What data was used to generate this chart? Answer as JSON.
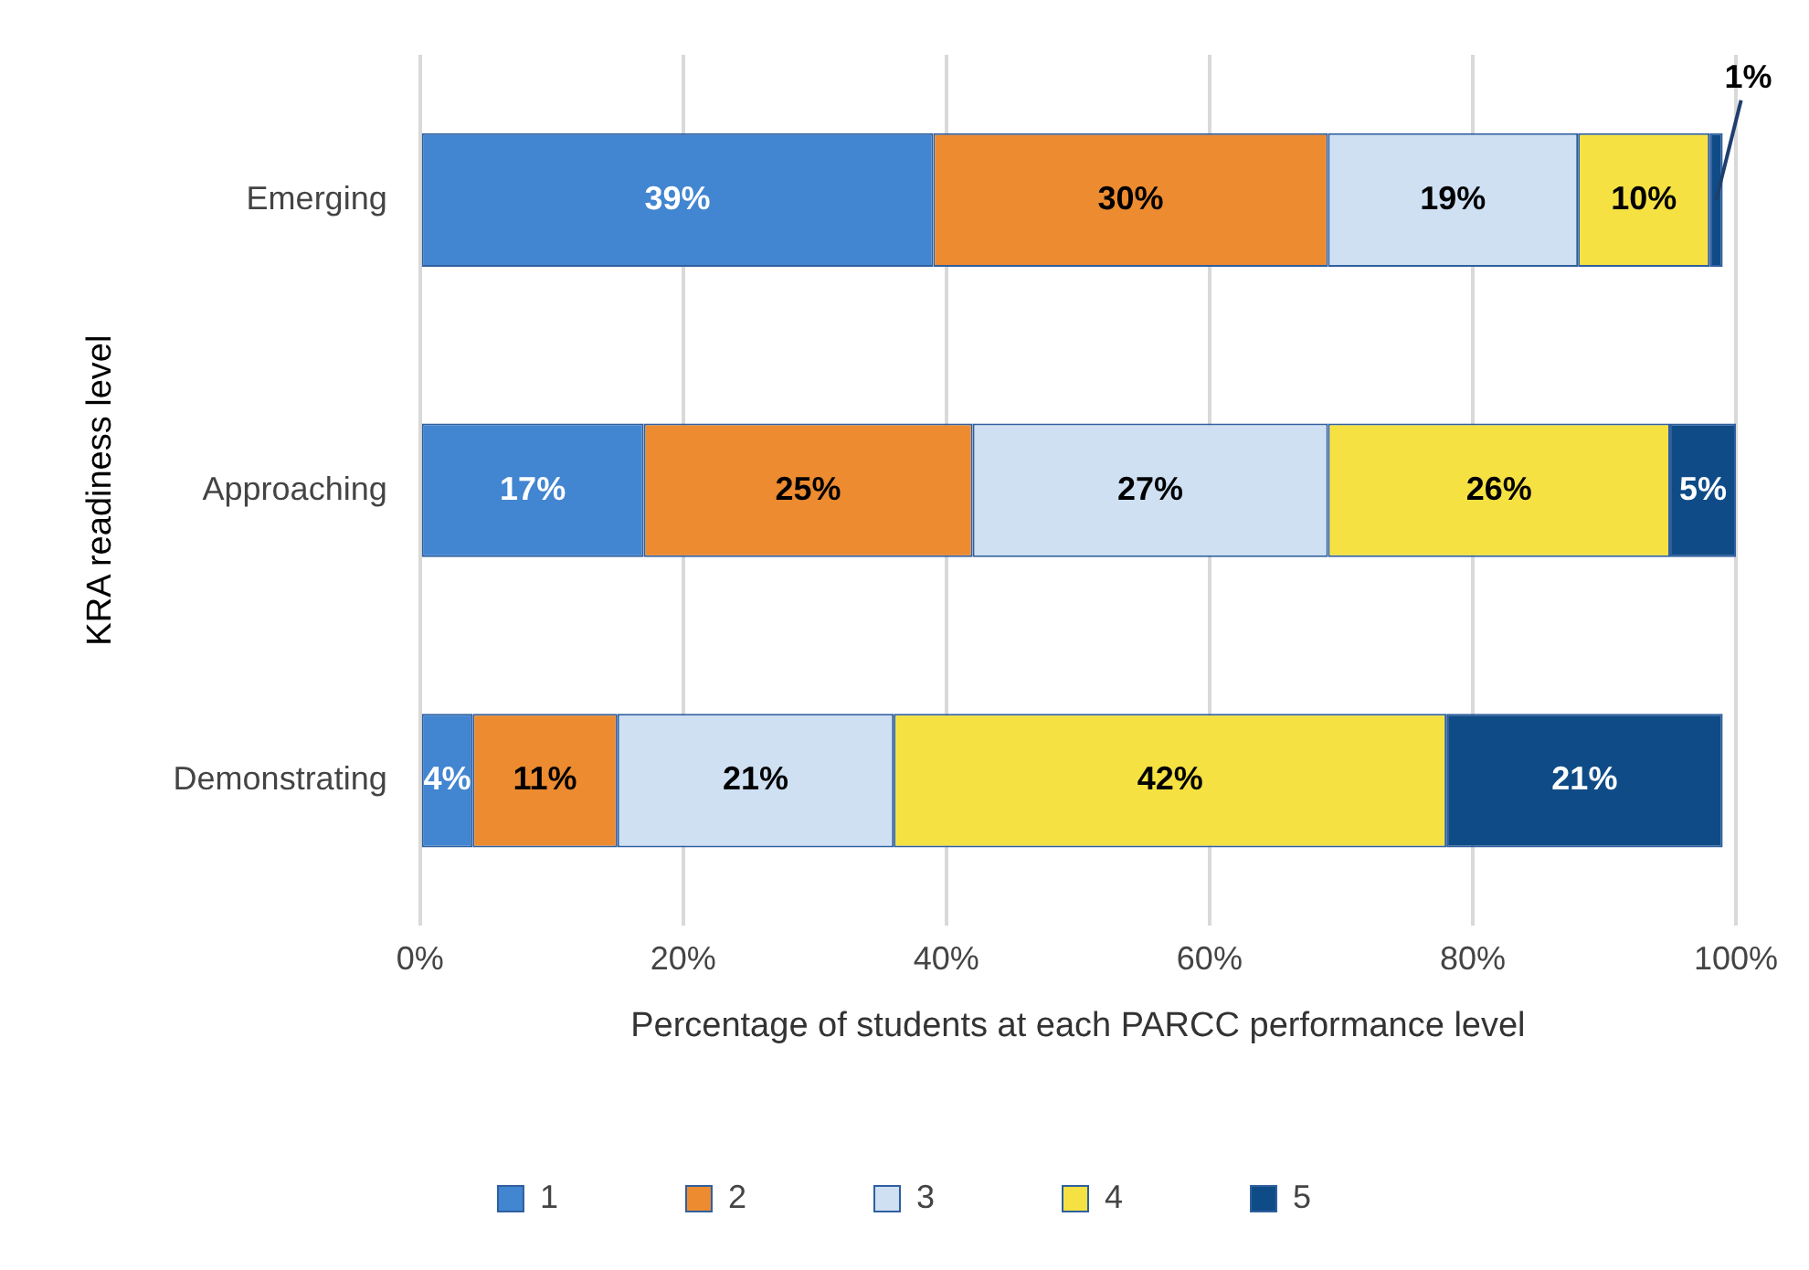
{
  "chart_data": {
    "type": "bar",
    "orientation": "horizontal",
    "stacked": true,
    "xlabel": "Percentage of students at each PARCC performance level",
    "ylabel": "KRA readiness level",
    "categories": [
      "Emerging",
      "Approaching",
      "Demonstrating"
    ],
    "series": [
      {
        "name": "1",
        "color": "#4285d1",
        "values": [
          39,
          17,
          4
        ],
        "value_labels": [
          "39%",
          "17%",
          "4%"
        ]
      },
      {
        "name": "2",
        "color": "#ed8b30",
        "values": [
          30,
          25,
          11
        ],
        "value_labels": [
          "30%",
          "25%",
          "11%"
        ]
      },
      {
        "name": "3",
        "color": "#cfe0f3",
        "values": [
          19,
          27,
          21
        ],
        "value_labels": [
          "19%",
          "27%",
          "21%"
        ]
      },
      {
        "name": "4",
        "color": "#f5e142",
        "values": [
          10,
          26,
          42
        ],
        "value_labels": [
          "10%",
          "26%",
          "42%"
        ]
      },
      {
        "name": "5",
        "color": "#0f4c87",
        "values": [
          1,
          5,
          21
        ],
        "value_labels": [
          "1%",
          "5%",
          "21%"
        ]
      }
    ],
    "xlim": [
      0,
      100
    ],
    "xticks": [
      {
        "value": 0,
        "label": "0%"
      },
      {
        "value": 20,
        "label": "20%"
      },
      {
        "value": 40,
        "label": "40%"
      },
      {
        "value": 60,
        "label": "60%"
      },
      {
        "value": 80,
        "label": "80%"
      },
      {
        "value": 100,
        "label": "100%"
      }
    ],
    "grid": "x",
    "legend": "bottom"
  }
}
